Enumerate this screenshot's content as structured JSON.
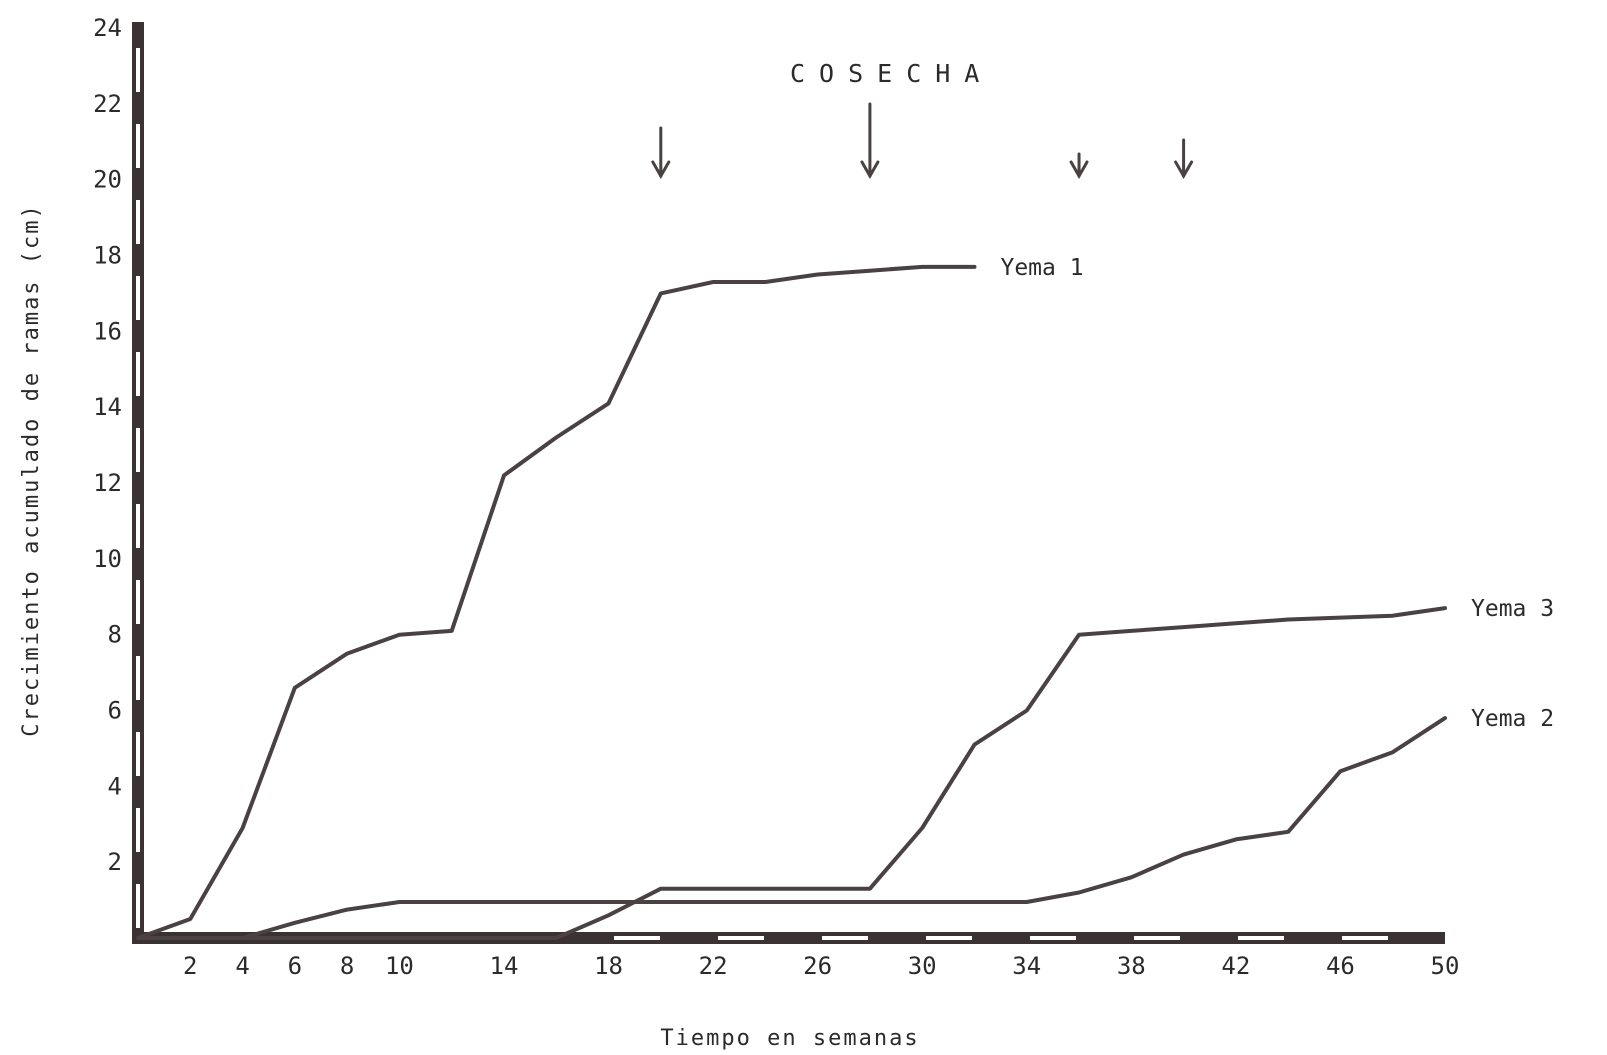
{
  "chart_data": {
    "type": "line",
    "xlabel": "Tiempo en semanas",
    "ylabel": "Crecimiento acumulado de ramas (cm)",
    "xlim": [
      0,
      50
    ],
    "ylim": [
      0,
      24
    ],
    "x_ticks": [
      "2",
      "4",
      "6",
      "8",
      "10",
      "14",
      "18",
      "22",
      "26",
      "30",
      "34",
      "38",
      "42",
      "46",
      "50"
    ],
    "y_ticks": [
      "2",
      "4",
      "6",
      "8",
      "10",
      "12",
      "14",
      "16",
      "18",
      "20",
      "22",
      "24"
    ],
    "series": [
      {
        "name": "Yema 1",
        "x": [
          0,
          2,
          4,
          6,
          8,
          10,
          12,
          14,
          16,
          18,
          20,
          22,
          24,
          26,
          28,
          30,
          32
        ],
        "y": [
          0,
          0.5,
          2.9,
          6.6,
          7.5,
          8.0,
          8.1,
          12.2,
          13.2,
          14.1,
          17.0,
          17.3,
          17.3,
          17.5,
          17.6,
          17.7,
          17.7
        ]
      },
      {
        "name": "Yema 3",
        "x": [
          0,
          16,
          18,
          20,
          22,
          24,
          26,
          28,
          30,
          32,
          34,
          36,
          38,
          40,
          42,
          44,
          46,
          48,
          50
        ],
        "y": [
          0,
          0,
          0.6,
          1.3,
          1.3,
          1.3,
          1.3,
          1.3,
          2.9,
          5.1,
          6.0,
          8.0,
          8.1,
          8.2,
          8.3,
          8.4,
          8.45,
          8.5,
          8.7
        ]
      },
      {
        "name": "Yema 2",
        "x": [
          0,
          4,
          6,
          8,
          10,
          12,
          14,
          16,
          18,
          20,
          22,
          24,
          26,
          28,
          30,
          32,
          34,
          36,
          38,
          40,
          42,
          44,
          46,
          48,
          50
        ],
        "y": [
          0,
          0,
          0.4,
          0.75,
          0.95,
          0.95,
          0.95,
          0.95,
          0.95,
          0.95,
          0.95,
          0.95,
          0.95,
          0.95,
          0.95,
          0.95,
          0.95,
          1.2,
          1.6,
          2.2,
          2.6,
          2.8,
          4.4,
          4.9,
          5.8
        ]
      }
    ],
    "annotation": {
      "text": "COSECHA",
      "arrows_at_week": [
        20,
        28,
        36,
        40
      ]
    },
    "grid": false,
    "legend": "inline labels at line ends"
  }
}
